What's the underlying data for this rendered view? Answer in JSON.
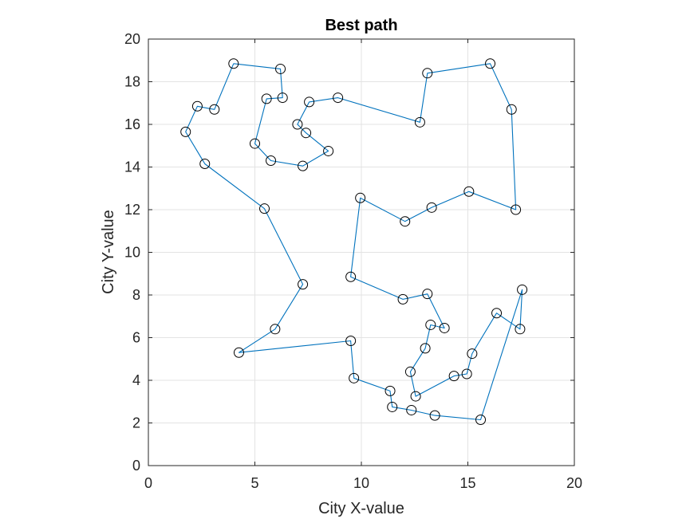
{
  "chart_data": {
    "type": "line",
    "title": "Best path",
    "xlabel": "City X-value",
    "ylabel": "City Y-value",
    "xlim": [
      0,
      20
    ],
    "ylim": [
      0,
      20
    ],
    "x_ticks": [
      0,
      5,
      10,
      15,
      20
    ],
    "y_ticks": [
      0,
      2,
      4,
      6,
      8,
      10,
      12,
      14,
      16,
      18,
      20
    ],
    "grid": true,
    "line_color": "#0072BD",
    "marker": "circle",
    "marker_color": "#000000",
    "path": [
      [
        4.0,
        18.85
      ],
      [
        6.2,
        18.6
      ],
      [
        6.3,
        17.25
      ],
      [
        5.55,
        17.2
      ],
      [
        5.0,
        15.1
      ],
      [
        5.75,
        14.3
      ],
      [
        7.25,
        14.05
      ],
      [
        8.45,
        14.75
      ],
      [
        7.4,
        15.6
      ],
      [
        7.0,
        16.0
      ],
      [
        7.55,
        17.05
      ],
      [
        8.9,
        17.25
      ],
      [
        12.75,
        16.1
      ],
      [
        13.1,
        18.4
      ],
      [
        16.05,
        18.85
      ],
      [
        17.05,
        16.7
      ],
      [
        17.25,
        12.0
      ],
      [
        15.05,
        12.85
      ],
      [
        13.3,
        12.1
      ],
      [
        12.05,
        11.45
      ],
      [
        9.95,
        12.55
      ],
      [
        9.5,
        8.85
      ],
      [
        11.95,
        7.8
      ],
      [
        13.1,
        8.05
      ],
      [
        13.9,
        6.45
      ],
      [
        13.25,
        6.6
      ],
      [
        13.0,
        5.5
      ],
      [
        12.3,
        4.4
      ],
      [
        12.55,
        3.25
      ],
      [
        14.35,
        4.2
      ],
      [
        14.95,
        4.3
      ],
      [
        15.2,
        5.25
      ],
      [
        16.35,
        7.15
      ],
      [
        17.45,
        6.4
      ],
      [
        17.55,
        8.25
      ],
      [
        15.6,
        2.15
      ],
      [
        13.45,
        2.35
      ],
      [
        12.35,
        2.6
      ],
      [
        11.45,
        2.75
      ],
      [
        11.35,
        3.5
      ],
      [
        9.65,
        4.1
      ],
      [
        9.5,
        5.85
      ],
      [
        4.25,
        5.3
      ],
      [
        5.95,
        6.4
      ],
      [
        7.25,
        8.5
      ],
      [
        5.45,
        12.05
      ],
      [
        2.65,
        14.15
      ],
      [
        1.75,
        15.65
      ],
      [
        2.3,
        16.85
      ],
      [
        3.1,
        16.7
      ],
      [
        4.0,
        18.85
      ]
    ]
  }
}
